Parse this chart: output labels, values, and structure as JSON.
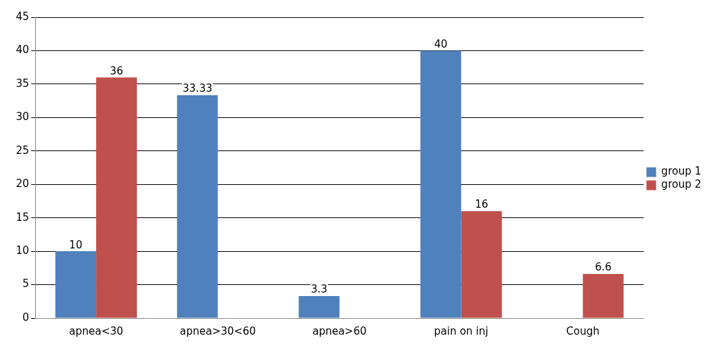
{
  "chart_data": {
    "type": "bar",
    "categories": [
      "apnea<30",
      "apnea>30<60",
      "apnea>60",
      "pain on inj",
      "Cough"
    ],
    "series": [
      {
        "name": "group 1",
        "color": "#4f81bd",
        "values": [
          10,
          33.33,
          3.3,
          40,
          null
        ]
      },
      {
        "name": "group 2",
        "color": "#c0504d",
        "values": [
          36,
          null,
          null,
          16,
          6.6
        ]
      }
    ],
    "ylim": [
      0,
      45
    ],
    "yticks": [
      0,
      5,
      10,
      15,
      20,
      25,
      30,
      35,
      40,
      45
    ],
    "grid": "y",
    "legend": "right",
    "data_labels": true
  }
}
